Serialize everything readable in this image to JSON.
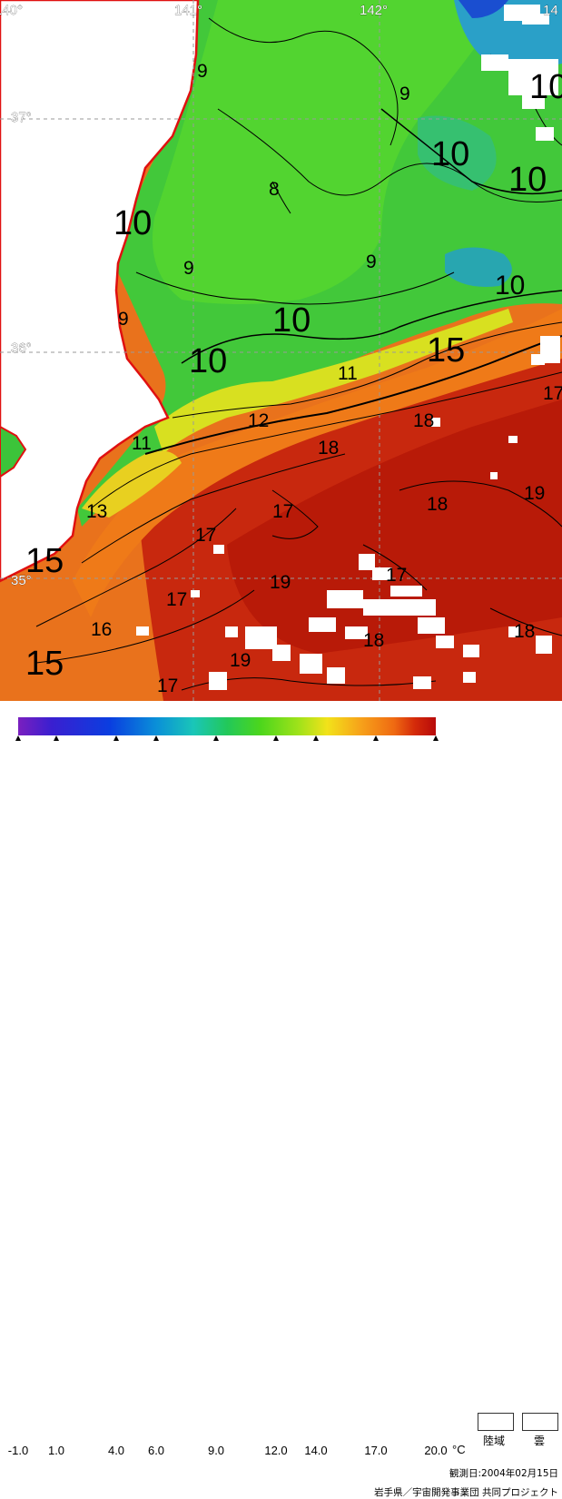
{
  "map": {
    "longitude_labels": [
      "140°",
      "141°",
      "142°",
      "14"
    ],
    "latitude_labels": [
      "37°",
      "36°",
      "35°"
    ],
    "isotherm_labels": [
      {
        "text": "9",
        "size": "s"
      },
      {
        "text": "9",
        "size": "s"
      },
      {
        "text": "10",
        "size": "l"
      },
      {
        "text": "10",
        "size": "l"
      },
      {
        "text": "10",
        "size": "l"
      },
      {
        "text": "8",
        "size": "s"
      },
      {
        "text": "10",
        "size": "l"
      },
      {
        "text": "9",
        "size": "s"
      },
      {
        "text": "9",
        "size": "s"
      },
      {
        "text": "9",
        "size": "s"
      },
      {
        "text": "10",
        "size": "m"
      },
      {
        "text": "10",
        "size": "l"
      },
      {
        "text": "10",
        "size": "l"
      },
      {
        "text": "11",
        "size": "s"
      },
      {
        "text": "15",
        "size": "l"
      },
      {
        "text": "17",
        "size": "s"
      },
      {
        "text": "12",
        "size": "s"
      },
      {
        "text": "11",
        "size": "s"
      },
      {
        "text": "18",
        "size": "s"
      },
      {
        "text": "18",
        "size": "s"
      },
      {
        "text": "18",
        "size": "s"
      },
      {
        "text": "19",
        "size": "s"
      },
      {
        "text": "13",
        "size": "s"
      },
      {
        "text": "17",
        "size": "s"
      },
      {
        "text": "17",
        "size": "s"
      },
      {
        "text": "15",
        "size": "l"
      },
      {
        "text": "19",
        "size": "s"
      },
      {
        "text": "17",
        "size": "s"
      },
      {
        "text": "17",
        "size": "s"
      },
      {
        "text": "16",
        "size": "s"
      },
      {
        "text": "18",
        "size": "s"
      },
      {
        "text": "18",
        "size": "s"
      },
      {
        "text": "15",
        "size": "l"
      },
      {
        "text": "19",
        "size": "s"
      },
      {
        "text": "17",
        "size": "s"
      }
    ]
  },
  "legend": {
    "ticks": [
      "-1.0",
      "1.0",
      "4.0",
      "6.0",
      "9.0",
      "12.0",
      "14.0",
      "17.0",
      "20.0"
    ],
    "unit": "°C",
    "land_label": "陸域",
    "cloud_label": "雲",
    "colors": [
      "#7a1fbf",
      "#3a1fd0",
      "#0a3ee0",
      "#0a8fd8",
      "#1ac6b8",
      "#22c85a",
      "#4cd61c",
      "#9ee21a",
      "#f2e21a",
      "#f7a21a",
      "#ef6a12",
      "#d42a0a",
      "#b80a0a"
    ]
  },
  "observation_date": "観測日:2004年02月15日",
  "credit": "岩手県／宇宙開発事業団 共同プロジェクト"
}
